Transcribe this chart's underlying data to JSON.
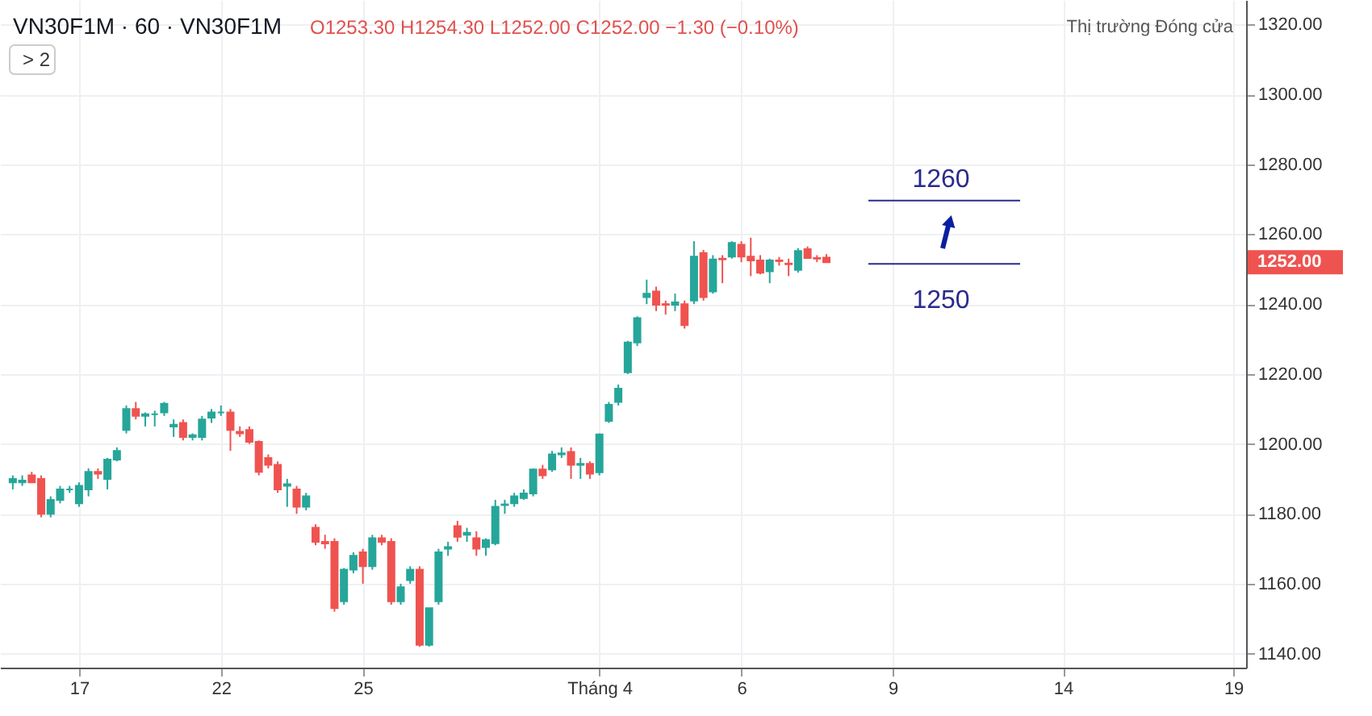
{
  "chart_data": {
    "type": "candlestick",
    "title": "VN30F1M · 60 · VN30F1M",
    "subtitle": "O1253.30 H1254.30 L1252.00 C1252.00 −1.30 (−0.10%)",
    "categories": [
      null,
      null,
      null,
      null,
      null,
      null,
      null,
      "17",
      null,
      null,
      null,
      null,
      null,
      null,
      null,
      null,
      null,
      null,
      null,
      null,
      null,
      null,
      "22",
      null,
      null,
      null,
      null,
      null,
      null,
      null,
      null,
      null,
      null,
      null,
      null,
      null,
      null,
      "25",
      null,
      null,
      null,
      null,
      null,
      null,
      null,
      null,
      null,
      null,
      null,
      null,
      null,
      null,
      null,
      null,
      null,
      null,
      null,
      null,
      null,
      null,
      null,
      null,
      "Tháng 4",
      null,
      null,
      null,
      null,
      null,
      null,
      null,
      null,
      null,
      null,
      null,
      null,
      null,
      null,
      "6",
      null,
      null,
      null,
      null,
      null,
      null,
      null,
      null,
      null,
      null,
      null,
      null,
      null,
      null,
      null,
      "9",
      null,
      null,
      null,
      null,
      null,
      null,
      null,
      null,
      null,
      null,
      null,
      null,
      null,
      null,
      null,
      null,
      null,
      "14",
      null,
      null,
      null,
      null,
      null,
      null,
      null,
      null,
      null,
      null,
      null,
      null,
      null,
      null,
      null,
      null,
      null,
      "19"
    ],
    "ohlc": [
      [
        1189,
        1191,
        1187,
        1190
      ],
      [
        1189,
        1191,
        1188,
        1189.5
      ],
      [
        1191,
        1192,
        1189,
        1189
      ],
      [
        1190,
        1191,
        1179,
        1180
      ],
      [
        1180,
        1185,
        1179,
        1184
      ],
      [
        1184,
        1188,
        1183,
        1187
      ],
      [
        1187,
        1188,
        1186,
        1187
      ],
      [
        1183,
        1189,
        1182,
        1188
      ],
      [
        1187,
        1193,
        1185,
        1192
      ],
      [
        1192,
        1193,
        1190,
        1191.5
      ],
      [
        1190,
        1196,
        1187,
        1195.5
      ],
      [
        1195.5,
        1199,
        1195,
        1198
      ],
      [
        1204,
        1211,
        1203,
        1210
      ],
      [
        1210,
        1212,
        1207,
        1208
      ],
      [
        1208,
        1209,
        1205,
        1208.5
      ],
      [
        1208.5,
        1209.5,
        1205,
        1208.5
      ],
      [
        1209,
        1212,
        1208,
        1211.5
      ],
      [
        1205,
        1207,
        1202,
        1205.5
      ],
      [
        1206,
        1207,
        1201,
        1202
      ],
      [
        1202,
        1203,
        1201,
        1202.5
      ],
      [
        1202,
        1208,
        1201,
        1207
      ],
      [
        1207.5,
        1210,
        1206,
        1209
      ],
      [
        1209,
        1211,
        1208,
        1209
      ],
      [
        1209,
        1210,
        1198,
        1204
      ],
      [
        1203.5,
        1205,
        1202,
        1203
      ],
      [
        1204,
        1205,
        1200,
        1200.6
      ],
      [
        1200.6,
        1201,
        1191,
        1192
      ],
      [
        1196,
        1197,
        1193,
        1194
      ],
      [
        1194,
        1195,
        1186,
        1187
      ],
      [
        1188,
        1190,
        1182,
        1188.5
      ],
      [
        1187,
        1188,
        1180,
        1182
      ],
      [
        1182,
        1186,
        1181,
        1185
      ],
      [
        1176,
        1177,
        1171,
        1172
      ],
      [
        1172,
        1174,
        1170,
        1171.5
      ],
      [
        1172,
        1173,
        1152,
        1153
      ],
      [
        1155,
        1164.5,
        1154,
        1164
      ],
      [
        1164,
        1169,
        1163,
        1168
      ],
      [
        1169,
        1170,
        1160,
        1165
      ],
      [
        1165,
        1174,
        1164,
        1173
      ],
      [
        1173,
        1174,
        1171,
        1172
      ],
      [
        1172,
        1173,
        1154,
        1155
      ],
      [
        1155,
        1160,
        1154,
        1159
      ],
      [
        1161,
        1165,
        1160,
        1164
      ],
      [
        1164,
        1165,
        1142,
        1142.5
      ],
      [
        1142.5,
        1153,
        1142,
        1153
      ],
      [
        1155,
        1170,
        1154,
        1169
      ],
      [
        1170,
        1172,
        1168,
        1170.5
      ],
      [
        1176.5,
        1178,
        1172,
        1173.4
      ],
      [
        1174,
        1176,
        1172,
        1174.6
      ],
      [
        1173,
        1175,
        1168,
        1170
      ],
      [
        1170.5,
        1173,
        1168,
        1172.5
      ],
      [
        1171.6,
        1184,
        1171,
        1182
      ],
      [
        1182.5,
        1184,
        1180,
        1182.7
      ],
      [
        1183,
        1186,
        1182,
        1185
      ],
      [
        1184.5,
        1187,
        1184,
        1185.8
      ],
      [
        1185.8,
        1193,
        1185,
        1192.7
      ],
      [
        1192.7,
        1194,
        1190,
        1191
      ],
      [
        1192.7,
        1198,
        1192,
        1197
      ],
      [
        1197,
        1199,
        1196,
        1197.3
      ],
      [
        1197.7,
        1199,
        1190,
        1194
      ],
      [
        1194,
        1196,
        1190,
        1194.3
      ],
      [
        1194.3,
        1195,
        1190,
        1191.5
      ],
      [
        1191.9,
        1203,
        1191,
        1202.7
      ],
      [
        1206.6,
        1212,
        1206,
        1211.2
      ],
      [
        1212,
        1217,
        1211,
        1215.8
      ],
      [
        1220.5,
        1229.5,
        1220,
        1229
      ],
      [
        1229,
        1236.5,
        1228,
        1236
      ],
      [
        1242,
        1247,
        1240,
        1243
      ],
      [
        1243.6,
        1245,
        1238,
        1239.8
      ],
      [
        1240,
        1241,
        1237,
        1239.8
      ],
      [
        1239.8,
        1243,
        1238,
        1240.5
      ],
      [
        1240,
        1241,
        1233,
        1234
      ],
      [
        1241,
        1258,
        1240,
        1253.6
      ],
      [
        1254.6,
        1255.5,
        1241,
        1242
      ],
      [
        1243.6,
        1254,
        1243,
        1252.8
      ],
      [
        1253,
        1254,
        1246,
        1252.8
      ],
      [
        1253.6,
        1258,
        1253,
        1257.5
      ],
      [
        1257,
        1258,
        1252,
        1253.6
      ],
      [
        1253.6,
        1259,
        1248,
        1252.5
      ],
      [
        1252.5,
        1254,
        1248.5,
        1249
      ],
      [
        1249.4,
        1253,
        1246,
        1252.5
      ],
      [
        1252.5,
        1253.5,
        1251,
        1252.3
      ],
      [
        1251.6,
        1253,
        1248,
        1251.4
      ],
      [
        1249.8,
        1256,
        1249,
        1255.2
      ],
      [
        1255.7,
        1256.5,
        1253,
        1253.2
      ],
      [
        1253.2,
        1254,
        1252,
        1253
      ],
      [
        1253.3,
        1254.3,
        1252,
        1252
      ],
      null,
      null,
      null,
      null,
      null,
      null,
      null,
      null,
      null,
      null,
      null,
      null,
      null,
      null,
      null,
      null,
      null,
      null,
      null,
      null,
      null,
      null,
      null,
      null,
      null,
      null,
      null,
      null,
      null,
      null,
      null,
      null,
      null,
      null,
      null,
      null,
      null,
      null,
      null,
      null,
      null,
      null,
      null
    ],
    "colors": [
      "#26a69a",
      "#26a69a",
      "#ef5350",
      "#ef5350",
      "#26a69a",
      "#26a69a",
      "#26a69a",
      "#26a69a",
      "#26a69a",
      "#ef5350",
      "#26a69a",
      "#26a69a",
      "#26a69a",
      "#ef5350",
      "#26a69a",
      "#26a69a",
      "#26a69a",
      "#26a69a",
      "#ef5350",
      "#26a69a",
      "#26a69a",
      "#26a69a",
      "#26a69a",
      "#ef5350",
      "#ef5350",
      "#ef5350",
      "#ef5350",
      "#ef5350",
      "#ef5350",
      "#26a69a",
      "#ef5350",
      "#26a69a",
      "#ef5350",
      "#ef5350",
      "#ef5350",
      "#26a69a",
      "#26a69a",
      "#ef5350",
      "#26a69a",
      "#ef5350",
      "#ef5350",
      "#26a69a",
      "#26a69a",
      "#ef5350",
      "#26a69a",
      "#26a69a",
      "#26a69a",
      "#ef5350",
      "#26a69a",
      "#ef5350",
      "#26a69a",
      "#26a69a",
      "#26a69a",
      "#26a69a",
      "#26a69a",
      "#26a69a",
      "#ef5350",
      "#26a69a",
      "#26a69a",
      "#ef5350",
      "#26a69a",
      "#ef5350",
      "#26a69a",
      "#26a69a",
      "#26a69a",
      "#26a69a",
      "#26a69a",
      "#26a69a",
      "#ef5350",
      "#ef5350",
      "#26a69a",
      "#ef5350",
      "#26a69a",
      "#ef5350",
      "#26a69a",
      "#ef5350",
      "#26a69a",
      "#ef5350",
      "#ef5350",
      "#ef5350",
      "#26a69a",
      "#ef5350",
      "#ef5350",
      "#26a69a",
      "#ef5350",
      "#ef5350",
      "#ef5350",
      null,
      null,
      null,
      null,
      null,
      null,
      null,
      null,
      null,
      null,
      null,
      null,
      null,
      null,
      null,
      null,
      null,
      null,
      null,
      null,
      null,
      null,
      null,
      null,
      null,
      null,
      null,
      null,
      null,
      null,
      null,
      null,
      null,
      null,
      null,
      null,
      null,
      null,
      null,
      null,
      null,
      null,
      null
    ],
    "ylim": [
      1136,
      1327
    ],
    "yticks": [
      {
        "value": 1140,
        "label": "1140.00"
      },
      {
        "value": 1160,
        "label": "1160.00"
      },
      {
        "value": 1180,
        "label": "1180.00"
      },
      {
        "value": 1200,
        "label": "1200.00"
      },
      {
        "value": 1220,
        "label": "1220.00"
      },
      {
        "value": 1240,
        "label": "1240.00"
      },
      {
        "value": 1260,
        "label": "1260.00"
      },
      {
        "value": 1280,
        "label": "1280.00"
      },
      {
        "value": 1300,
        "label": "1300.00"
      },
      {
        "value": 1320,
        "label": "1320.00"
      }
    ],
    "grid": true,
    "ref_lines": [
      {
        "axis": "y",
        "value": 1269.6,
        "color": "#2b2b8c"
      },
      {
        "axis": "y",
        "value": 1251.5,
        "color": "#2b2b8c"
      }
    ],
    "annotations": [
      "Thị trường Đóng cửa",
      "> 2",
      "1260",
      "1250",
      "1252.00"
    ]
  }
}
